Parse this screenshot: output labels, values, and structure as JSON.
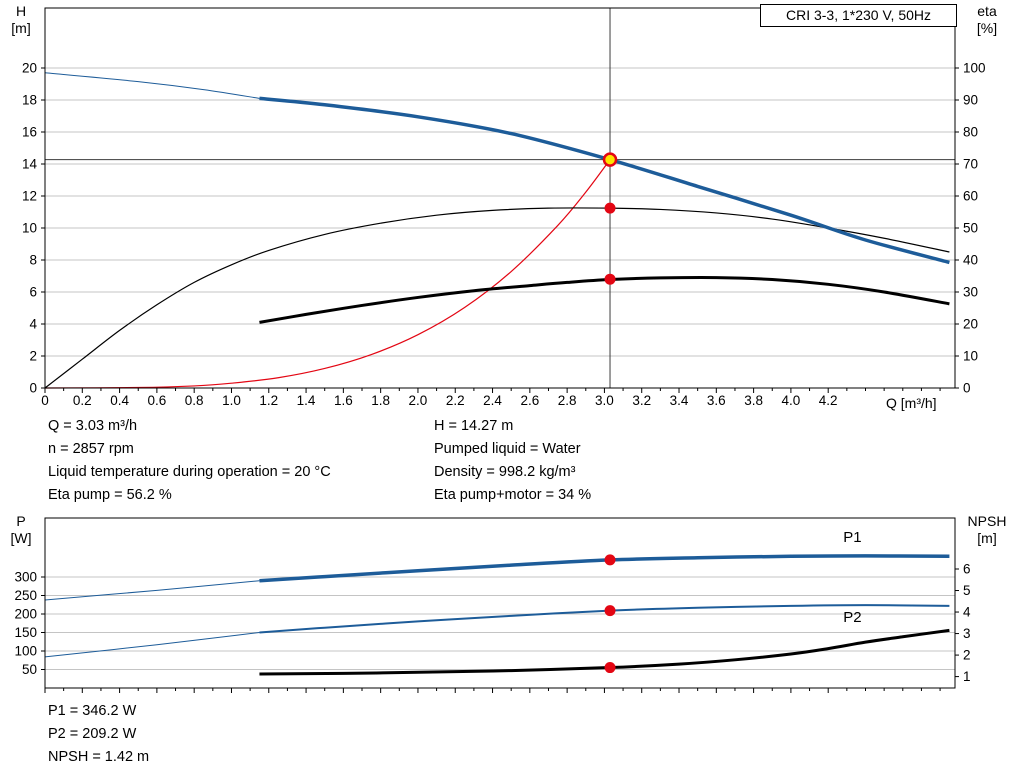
{
  "colors": {
    "blue": "#1d5c99",
    "red": "#e30613",
    "black": "#000000",
    "grid": "#c4c4c4",
    "crosshair": "#3c3c3c",
    "yellow": "#ffe400"
  },
  "info_top_left": [
    "Q = 3.03 m³/h",
    "n = 2857 rpm",
    "Liquid temperature during operation = 20 °C",
    "Eta pump = 56.2 %"
  ],
  "info_top_right": [
    "H = 14.27 m",
    "Pumped liquid = Water",
    "Density = 998.2 kg/m³",
    "Eta pump+motor = 34 %"
  ],
  "info_bottom": [
    "P1 = 346.2 W",
    "P2 = 209.2 W",
    "NPSH = 1.42 m"
  ],
  "chart_data": [
    {
      "type": "line",
      "title": "CRI 3-3, 1*230 V, 50Hz",
      "x": {
        "label": "Q [m³/h]",
        "lim": [
          0,
          4.88
        ],
        "minor_step": 0.1,
        "major_ticks": [
          0,
          0.2,
          0.4,
          0.6,
          0.8,
          1.0,
          1.2,
          1.4,
          1.6,
          1.8,
          2.0,
          2.2,
          2.4,
          2.6,
          2.8,
          3.0,
          3.2,
          3.4,
          3.6,
          3.8,
          4.0,
          4.2
        ],
        "tick_labels": [
          "0",
          "0.2",
          "0.4",
          "0.6",
          "0.8",
          "1.0",
          "1.2",
          "1.4",
          "1.6",
          "1.8",
          "2.0",
          "2.2",
          "2.4",
          "2.6",
          "2.8",
          "3.0",
          "3.2",
          "3.4",
          "3.6",
          "3.8",
          "4.0",
          "4.2"
        ]
      },
      "y_left": {
        "label": [
          "H",
          "[m]"
        ],
        "lim": [
          0,
          23.75
        ],
        "ticks": [
          0,
          2,
          4,
          6,
          8,
          10,
          12,
          14,
          16,
          18,
          20
        ]
      },
      "y_right": {
        "label": [
          "eta",
          "[%]"
        ],
        "lim": [
          0,
          118.75
        ],
        "ticks": [
          0,
          10,
          20,
          30,
          40,
          50,
          60,
          70,
          80,
          90,
          100
        ]
      },
      "series": [
        {
          "name": "head-curve-extension",
          "axis": "left",
          "color": "blue",
          "width": 1,
          "points": [
            [
              0,
              19.7
            ],
            [
              0.5,
              19.15
            ],
            [
              0.85,
              18.65
            ],
            [
              1.15,
              18.1
            ]
          ]
        },
        {
          "name": "system-resulting-curve",
          "axis": "left",
          "color": "red",
          "width": 1.2,
          "points": [
            [
              0,
              0
            ],
            [
              0.5,
              0.03
            ],
            [
              0.8,
              0.13
            ],
            [
              1.0,
              0.3
            ],
            [
              1.25,
              0.64
            ],
            [
              1.5,
              1.22
            ],
            [
              1.75,
              2.09
            ],
            [
              2.0,
              3.33
            ],
            [
              2.25,
              5.03
            ],
            [
              2.5,
              7.28
            ],
            [
              2.75,
              10.16
            ],
            [
              2.9,
              12.24
            ],
            [
              3.03,
              14.27
            ]
          ]
        },
        {
          "name": "eta-pump-curve",
          "axis": "right",
          "color": "black",
          "width": 1.2,
          "points": [
            [
              0,
              0
            ],
            [
              0.2,
              9
            ],
            [
              0.4,
              18
            ],
            [
              0.6,
              26
            ],
            [
              0.8,
              33
            ],
            [
              1.0,
              38.5
            ],
            [
              1.2,
              43
            ],
            [
              1.5,
              48
            ],
            [
              1.8,
              51.5
            ],
            [
              2.1,
              54
            ],
            [
              2.4,
              55.5
            ],
            [
              2.7,
              56.2
            ],
            [
              3.03,
              56.2
            ],
            [
              3.3,
              55.8
            ],
            [
              3.6,
              54.7
            ],
            [
              3.9,
              52.8
            ],
            [
              4.2,
              50
            ],
            [
              4.5,
              46.8
            ],
            [
              4.85,
              42.5
            ]
          ]
        },
        {
          "name": "eta-pump-motor-curve",
          "axis": "right",
          "color": "black",
          "width": 3,
          "points": [
            [
              1.15,
              20.5
            ],
            [
              1.4,
              23
            ],
            [
              1.7,
              25.8
            ],
            [
              2.0,
              28.3
            ],
            [
              2.3,
              30.4
            ],
            [
              2.6,
              32
            ],
            [
              2.8,
              33
            ],
            [
              3.03,
              33.9
            ],
            [
              3.3,
              34.4
            ],
            [
              3.6,
              34.5
            ],
            [
              3.9,
              33.9
            ],
            [
              4.2,
              32.4
            ],
            [
              4.5,
              30
            ],
            [
              4.85,
              26.3
            ]
          ]
        },
        {
          "name": "head-curve",
          "axis": "left",
          "color": "blue",
          "width": 3.5,
          "points": [
            [
              1.15,
              18.1
            ],
            [
              1.5,
              17.7
            ],
            [
              2.0,
              16.95
            ],
            [
              2.5,
              15.9
            ],
            [
              3.03,
              14.27
            ],
            [
              3.5,
              12.6
            ],
            [
              4.0,
              10.8
            ],
            [
              4.4,
              9.25
            ],
            [
              4.85,
              7.85
            ]
          ]
        }
      ],
      "crosshair": {
        "q": 3.03,
        "h": 14.27
      },
      "markers": [
        {
          "name": "duty-point",
          "axis": "left",
          "q": 3.03,
          "v": 14.27,
          "style": "duty"
        },
        {
          "name": "eta-pump-point",
          "axis": "right",
          "q": 3.03,
          "v": 56.2,
          "style": "red"
        },
        {
          "name": "eta-pump-motor-point",
          "axis": "right",
          "q": 3.03,
          "v": 34,
          "style": "red"
        }
      ],
      "annotations": []
    },
    {
      "type": "line",
      "title": "",
      "x": {
        "label": "",
        "lim": [
          0,
          4.88
        ],
        "minor_step": 0.1,
        "major_ticks": [
          0,
          0.2,
          0.4,
          0.6,
          0.8,
          1.0,
          1.2,
          1.4,
          1.6,
          1.8,
          2.0,
          2.2,
          2.4,
          2.6,
          2.8,
          3.0,
          3.2,
          3.4,
          3.6,
          3.8,
          4.0,
          4.2
        ],
        "tick_labels": []
      },
      "y_left": {
        "label": [
          "P",
          "[W]"
        ],
        "lim": [
          0,
          459.5
        ],
        "ticks": [
          50,
          100,
          150,
          200,
          250,
          300
        ]
      },
      "y_right": {
        "label": [
          "NPSH",
          "[m]"
        ],
        "lim": [
          0.47,
          8.37
        ],
        "ticks": [
          1,
          2,
          3,
          4,
          5,
          6
        ]
      },
      "series": [
        {
          "name": "p1-curve-extension",
          "axis": "left",
          "color": "blue",
          "width": 1,
          "points": [
            [
              0,
              238
            ],
            [
              0.6,
              264
            ],
            [
              1.15,
              290
            ]
          ]
        },
        {
          "name": "p2-curve-extension",
          "axis": "left",
          "color": "blue",
          "width": 1,
          "points": [
            [
              0,
              84
            ],
            [
              0.6,
              117
            ],
            [
              1.15,
              150
            ]
          ]
        },
        {
          "name": "p1-curve",
          "axis": "left",
          "color": "blue",
          "width": 3.5,
          "points": [
            [
              1.15,
              290
            ],
            [
              1.5,
              301
            ],
            [
              2.0,
              317
            ],
            [
              2.5,
              332
            ],
            [
              3.03,
              346.2
            ],
            [
              3.5,
              352
            ],
            [
              4.0,
              356
            ],
            [
              4.4,
              357
            ],
            [
              4.85,
              356
            ]
          ]
        },
        {
          "name": "p2-curve",
          "axis": "left",
          "color": "blue",
          "width": 2,
          "points": [
            [
              1.15,
              150
            ],
            [
              1.5,
              163
            ],
            [
              2.0,
              180
            ],
            [
              2.5,
              195
            ],
            [
              3.03,
              209.2
            ],
            [
              3.5,
              217
            ],
            [
              4.0,
              222
            ],
            [
              4.4,
              224
            ],
            [
              4.85,
              222
            ]
          ]
        },
        {
          "name": "npsh-curve",
          "axis": "right",
          "color": "black",
          "width": 3,
          "points": [
            [
              1.15,
              1.12
            ],
            [
              1.6,
              1.15
            ],
            [
              2.0,
              1.2
            ],
            [
              2.5,
              1.28
            ],
            [
              3.03,
              1.42
            ],
            [
              3.4,
              1.58
            ],
            [
              3.7,
              1.78
            ],
            [
              4.0,
              2.05
            ],
            [
              4.2,
              2.3
            ],
            [
              4.4,
              2.6
            ],
            [
              4.6,
              2.85
            ],
            [
              4.85,
              3.15
            ]
          ]
        }
      ],
      "markers": [
        {
          "name": "p1-point",
          "axis": "left",
          "q": 3.03,
          "v": 346.2,
          "style": "red"
        },
        {
          "name": "p2-point",
          "axis": "left",
          "q": 3.03,
          "v": 209.2,
          "style": "red"
        },
        {
          "name": "npsh-point",
          "axis": "right",
          "q": 3.03,
          "v": 1.42,
          "style": "red"
        }
      ],
      "annotations": [
        {
          "text": "P1",
          "axis": "left",
          "q": 4.33,
          "v": 395,
          "color": "blue"
        },
        {
          "text": "P2",
          "axis": "left",
          "q": 4.33,
          "v": 178,
          "color": "blue"
        }
      ]
    }
  ]
}
